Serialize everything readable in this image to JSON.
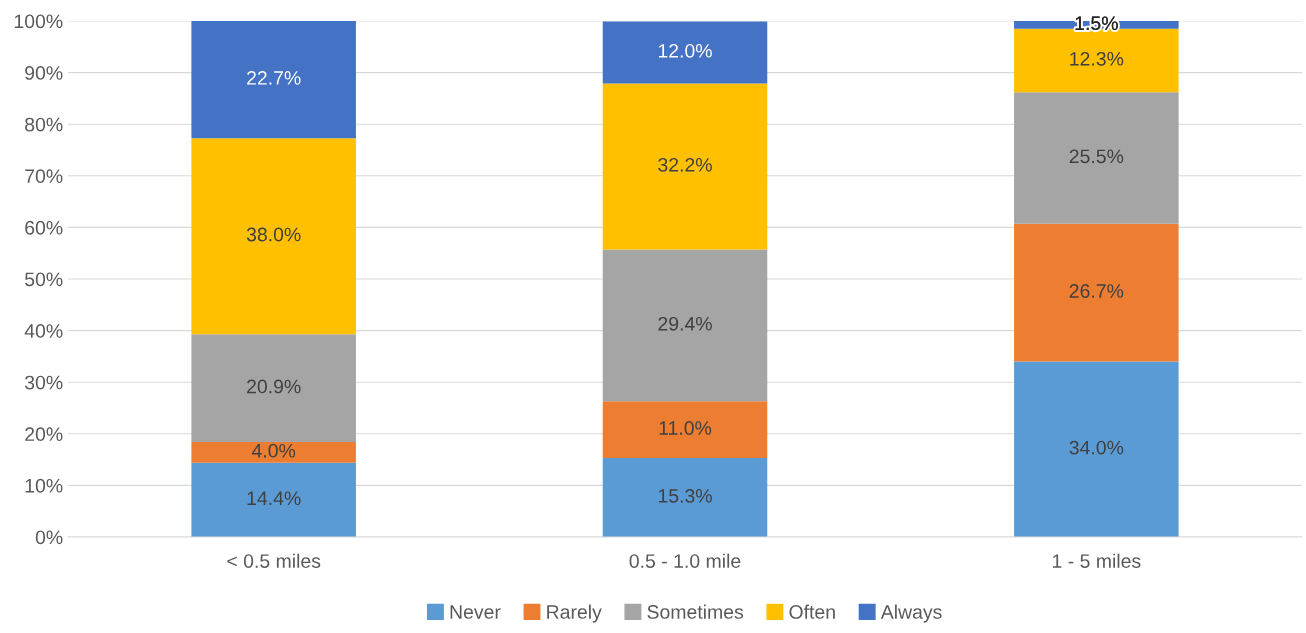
{
  "chart_data": {
    "type": "bar",
    "stacked": true,
    "categories": [
      "< 0.5 miles",
      "0.5 - 1.0 mile",
      "1 - 5 miles"
    ],
    "series": [
      {
        "name": "Never",
        "color": "#5b9bd5",
        "values": [
          14.4,
          15.3,
          34.0
        ],
        "value_labels": [
          "14.4%",
          "15.3%",
          "34.0%"
        ]
      },
      {
        "name": "Rarely",
        "color": "#ed7d31",
        "values": [
          4.0,
          11.0,
          26.7
        ],
        "value_labels": [
          "4.0%",
          "11.0%",
          "26.7%"
        ]
      },
      {
        "name": "Sometimes",
        "color": "#a5a5a5",
        "values": [
          20.9,
          29.4,
          25.5
        ],
        "value_labels": [
          "20.9%",
          "29.4%",
          "25.5%"
        ]
      },
      {
        "name": "Often",
        "color": "#ffc000",
        "values": [
          38.0,
          32.2,
          12.3
        ],
        "value_labels": [
          "38.0%",
          "32.2%",
          "12.3%"
        ]
      },
      {
        "name": "Always",
        "color": "#4472c4",
        "values": [
          22.7,
          12.0,
          1.5
        ],
        "value_labels": [
          "22.7%",
          "12.0%",
          "1.5%"
        ]
      }
    ],
    "ylim": [
      0,
      100
    ],
    "yticks": [
      {
        "value": 0,
        "label": "0%"
      },
      {
        "value": 10,
        "label": "10%"
      },
      {
        "value": 20,
        "label": "20%"
      },
      {
        "value": 30,
        "label": "30%"
      },
      {
        "value": 40,
        "label": "40%"
      },
      {
        "value": 50,
        "label": "50%"
      },
      {
        "value": 60,
        "label": "60%"
      },
      {
        "value": 70,
        "label": "70%"
      },
      {
        "value": 80,
        "label": "80%"
      },
      {
        "value": 90,
        "label": "90%"
      },
      {
        "value": 100,
        "label": "100%"
      }
    ],
    "grid": "y",
    "legend": "bottom"
  }
}
